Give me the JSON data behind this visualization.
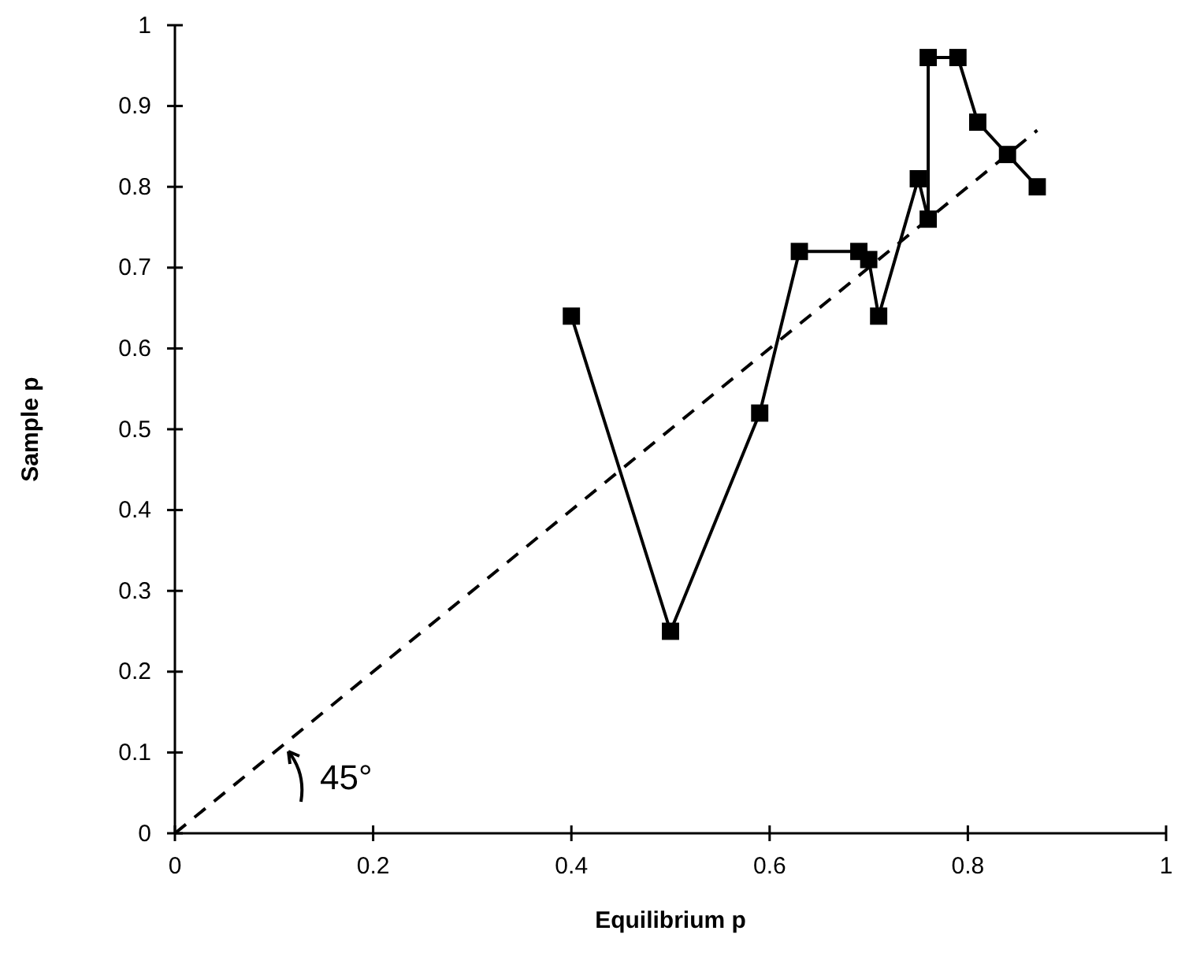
{
  "chart_data": {
    "type": "line",
    "xlabel": "Equilibrium p",
    "ylabel": "Sample p",
    "xlim": [
      0,
      1
    ],
    "ylim": [
      0,
      1
    ],
    "xticks": [
      0,
      0.2,
      0.4,
      0.6,
      0.8,
      1
    ],
    "yticks": [
      0,
      0.1,
      0.2,
      0.3,
      0.4,
      0.5,
      0.6,
      0.7,
      0.8,
      0.9,
      1
    ],
    "grid": false,
    "series": [
      {
        "color": "#000000",
        "marker": "square",
        "line_style": "solid",
        "x": [
          0.4,
          0.5,
          0.59,
          0.63,
          0.69,
          0.7,
          0.71,
          0.75,
          0.76,
          0.76,
          0.79,
          0.81,
          0.84,
          0.87
        ],
        "values": [
          0.64,
          0.25,
          0.52,
          0.72,
          0.72,
          0.71,
          0.64,
          0.81,
          0.76,
          0.96,
          0.96,
          0.88,
          0.84,
          0.8
        ]
      },
      {
        "color": "#000000",
        "line_style": "dashed",
        "x": [
          0,
          0.87
        ],
        "values": [
          0,
          0.87
        ]
      }
    ],
    "annotations": [
      "45°"
    ]
  }
}
